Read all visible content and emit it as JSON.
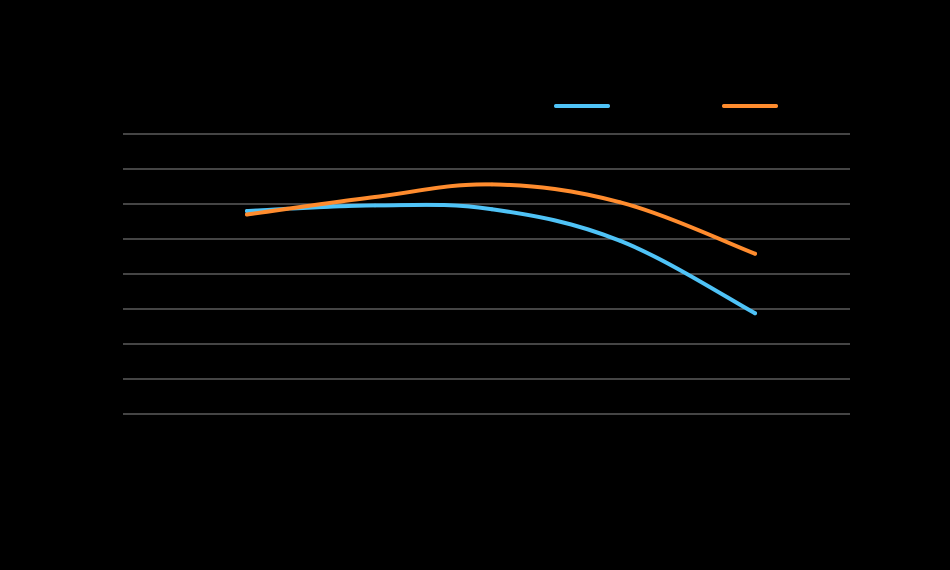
{
  "chart_data": {
    "type": "line",
    "title": "",
    "xlabel": "",
    "ylabel": "",
    "categories": [
      "",
      "",
      "",
      "",
      ""
    ],
    "ylim": [
      0,
      8
    ],
    "grid": true,
    "legend_position": "top-right",
    "series": [
      {
        "color": "#4FC3F7",
        "values": [
          5.8,
          5.96,
          5.85,
          4.95,
          2.88
        ]
      },
      {
        "color": "#FF8C2E",
        "values": [
          5.7,
          6.2,
          6.56,
          6.05,
          4.58
        ]
      }
    ]
  }
}
